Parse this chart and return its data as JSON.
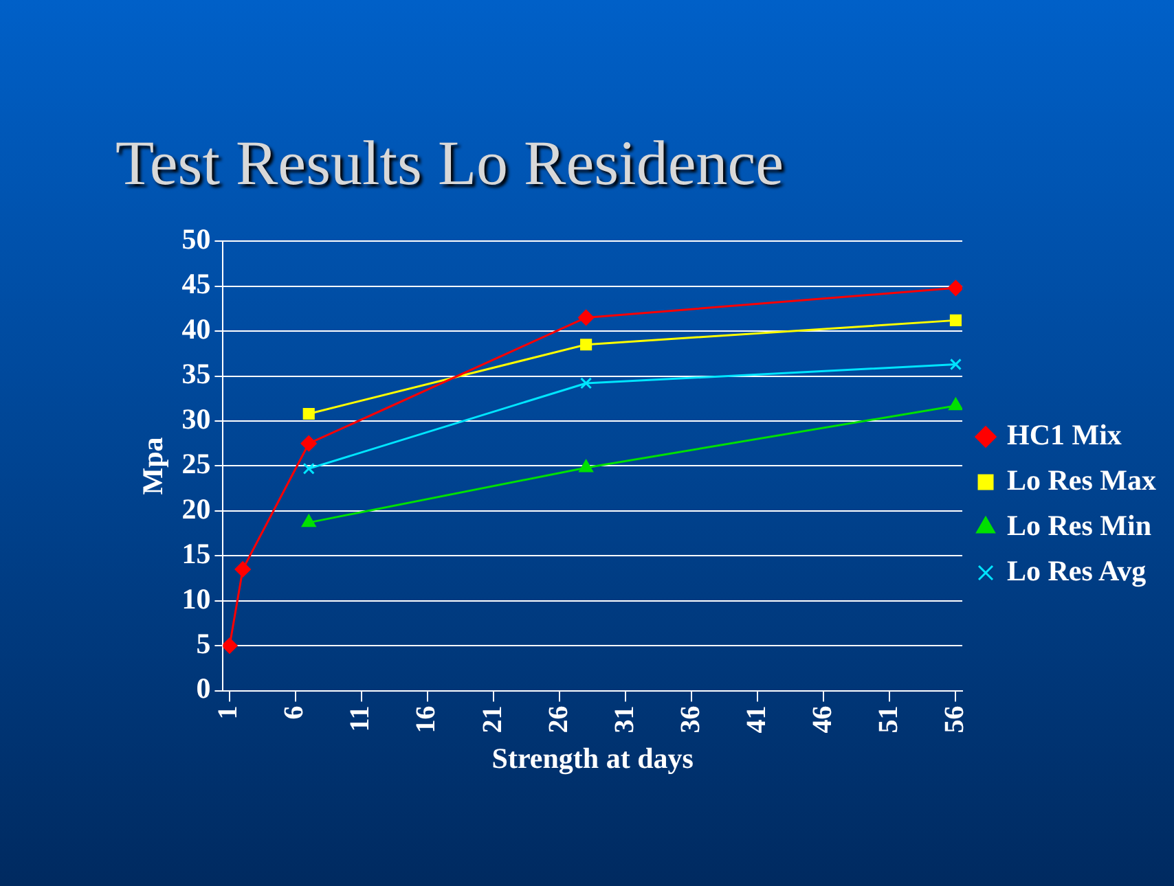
{
  "chart_data": {
    "type": "line",
    "title": "Test Results Lo Residence",
    "xlabel": "Strength at days",
    "ylabel": "Mpa",
    "xlim": [
      0.5,
      56.5
    ],
    "xticks": [
      1,
      6,
      11,
      16,
      21,
      26,
      31,
      36,
      41,
      46,
      51,
      56
    ],
    "ylim": [
      0,
      50
    ],
    "yticks": [
      0,
      5,
      10,
      15,
      20,
      25,
      30,
      35,
      40,
      45,
      50
    ],
    "grid": "y",
    "legend": "right",
    "series": [
      {
        "name": "HC1 Mix",
        "color": "#ff0000",
        "marker": "diamond",
        "x": [
          1,
          2,
          7,
          28,
          56
        ],
        "values": [
          5,
          13.5,
          27.5,
          41.5,
          44.8
        ]
      },
      {
        "name": "Lo Res Max",
        "color": "#ffff00",
        "marker": "square",
        "x": [
          7,
          28,
          56
        ],
        "values": [
          30.8,
          38.5,
          41.2
        ]
      },
      {
        "name": "Lo Res Min",
        "color": "#00e000",
        "marker": "triangle",
        "x": [
          7,
          28,
          56
        ],
        "values": [
          18.7,
          24.8,
          31.7
        ]
      },
      {
        "name": "Lo Res Avg",
        "color": "#00e5ff",
        "marker": "cross",
        "x": [
          7,
          28,
          56
        ],
        "values": [
          24.7,
          34.2,
          36.3
        ]
      }
    ]
  }
}
